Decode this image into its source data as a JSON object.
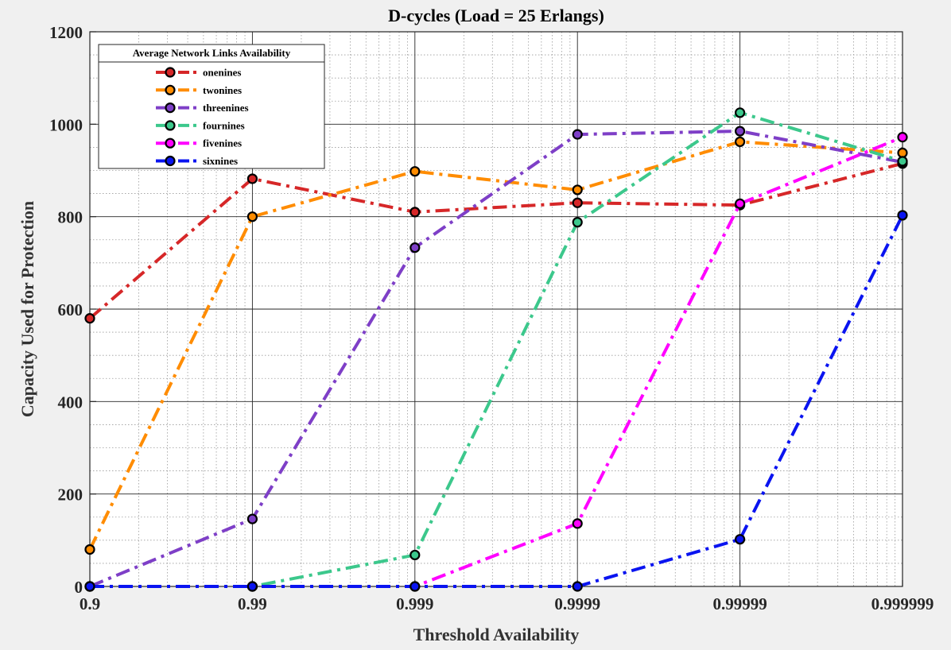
{
  "chart_data": {
    "type": "line",
    "title": "D-cycles (Load  = 25 Erlangs)",
    "xlabel": "Threshold Availability",
    "ylabel": "Capacity Used for Protection",
    "x_scale": "log-of-unavailability",
    "x": [
      0.9,
      0.99,
      0.999,
      0.9999,
      0.99999,
      0.999999
    ],
    "x_tick_labels": [
      "0.9",
      "0.99",
      "0.999",
      "0.9999",
      "0.99999",
      "0.999999"
    ],
    "ylim": [
      0,
      1200
    ],
    "y_ticks": [
      0,
      200,
      400,
      600,
      800,
      1000,
      1200
    ],
    "grid": true,
    "minor_grid": true,
    "legend_title": "Average Network Links Availability",
    "legend_position": "top-left",
    "marker": "circle-black-edge",
    "line_style": "dash-dot",
    "series": [
      {
        "name": "onenines",
        "color": "#d62728",
        "values": [
          580,
          882,
          810,
          830,
          825,
          915
        ]
      },
      {
        "name": "twonines",
        "color": "#ff8c00",
        "values": [
          80,
          800,
          898,
          858,
          962,
          938
        ]
      },
      {
        "name": "threenines",
        "color": "#7e3fc7",
        "values": [
          0,
          146,
          733,
          978,
          985,
          918
        ]
      },
      {
        "name": "fournines",
        "color": "#3cc88c",
        "values": [
          0,
          0,
          68,
          788,
          1025,
          920
        ]
      },
      {
        "name": "fivenines",
        "color": "#ff00ff",
        "values": [
          0,
          0,
          0,
          136,
          828,
          972
        ]
      },
      {
        "name": "sixnines",
        "color": "#0a14f0",
        "values": [
          0,
          0,
          0,
          0,
          102,
          803
        ]
      }
    ]
  }
}
